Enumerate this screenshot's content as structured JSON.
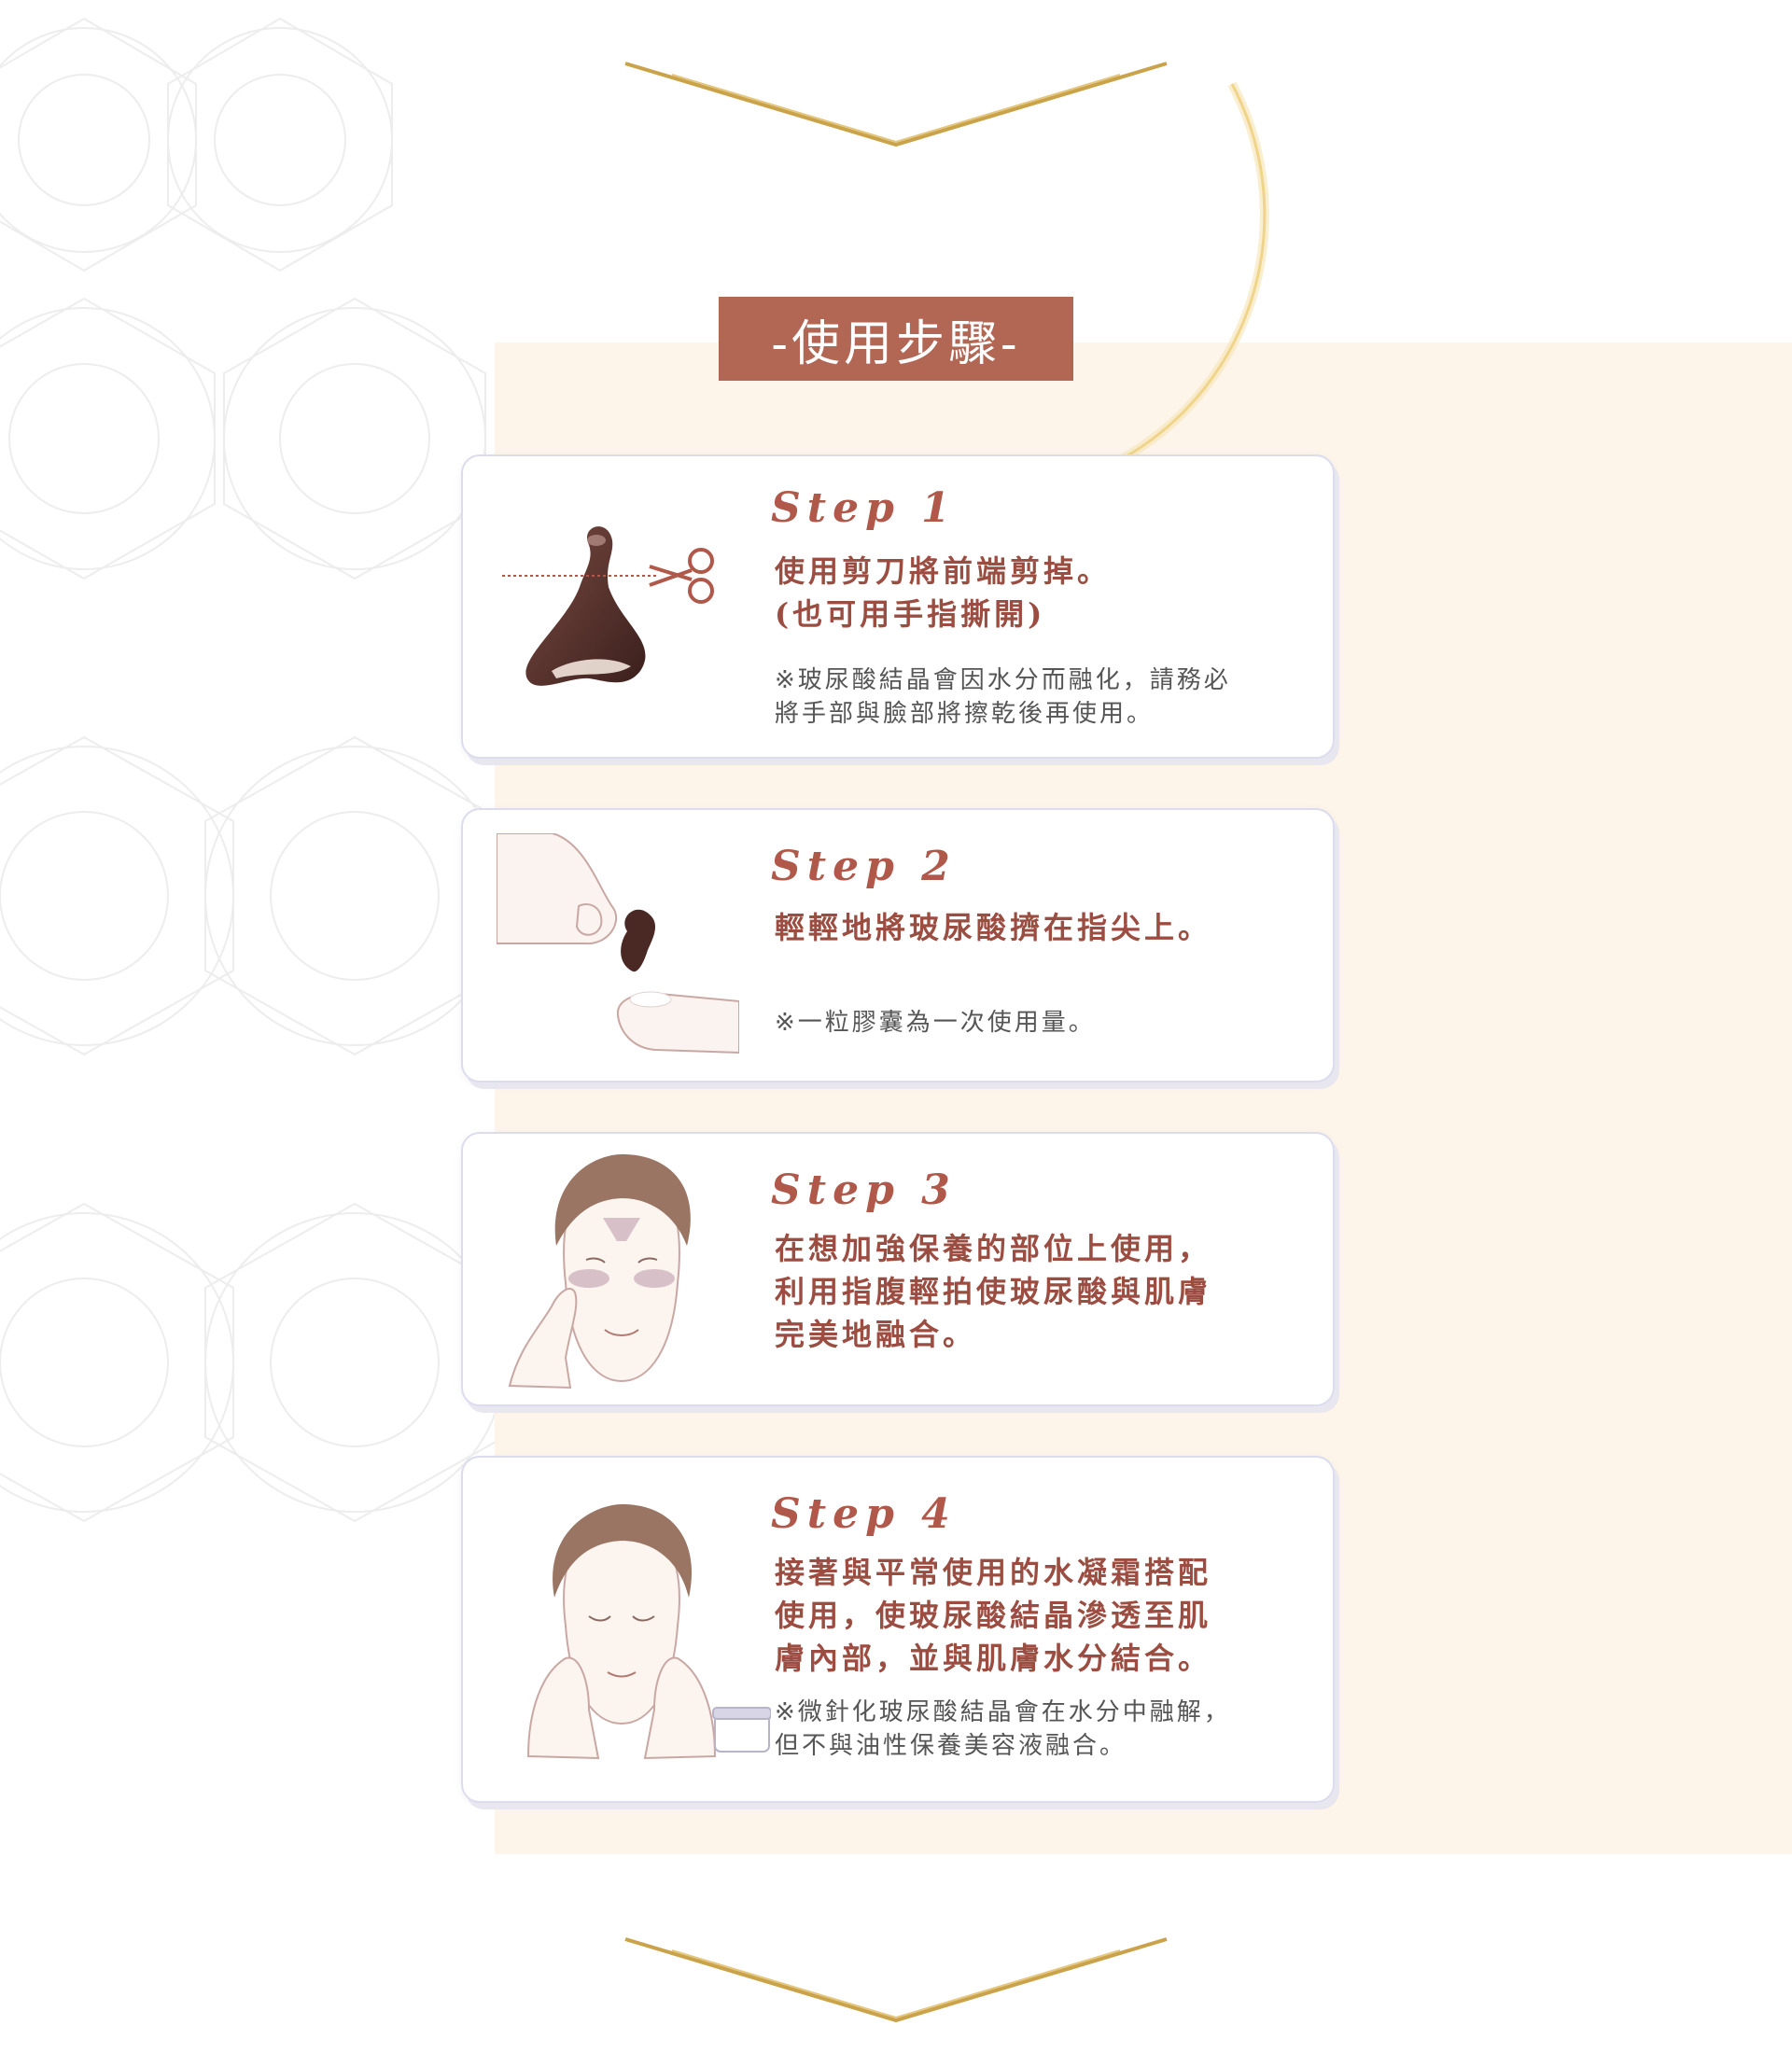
{
  "section_title": "-使用步驟-",
  "colors": {
    "title_bg": "#b26654",
    "step_heading": "#b0584a",
    "step_text": "#9c4d41",
    "note_text": "#555555",
    "panel_bg": "#fdf4ea",
    "chevron_gold": "#c9a24a",
    "card_border": "#dcdcef"
  },
  "steps": [
    {
      "heading": "Step 1",
      "body": [
        "使用剪刀將前端剪掉。",
        "(也可用手指撕開)"
      ],
      "note": [
        "※玻尿酸結晶會因水分而融化，請務必",
        "將手部與臉部將擦乾後再使用。"
      ],
      "illustration": "capsule-scissors-icon"
    },
    {
      "heading": "Step 2",
      "body": [
        "輕輕地將玻尿酸擠在指尖上。"
      ],
      "note": [
        "※一粒膠囊為一次使用量。"
      ],
      "illustration": "fingertip-squeeze-icon"
    },
    {
      "heading": "Step 3",
      "body": [
        "在想加強保養的部位上使用，",
        "利用指腹輕拍使玻尿酸與肌膚",
        "完美地融合。"
      ],
      "illustration": "face-pat-icon"
    },
    {
      "heading": "Step 4",
      "body": [
        "接著與平常使用的水凝霜搭配",
        "使用，使玻尿酸結晶滲透至肌",
        "膚內部，並與肌膚水分結合。"
      ],
      "note": [
        "※微針化玻尿酸結晶會在水分中融解，",
        "但不與油性保養美容液融合。"
      ],
      "illustration": "face-hands-cream-jar-icon"
    }
  ]
}
